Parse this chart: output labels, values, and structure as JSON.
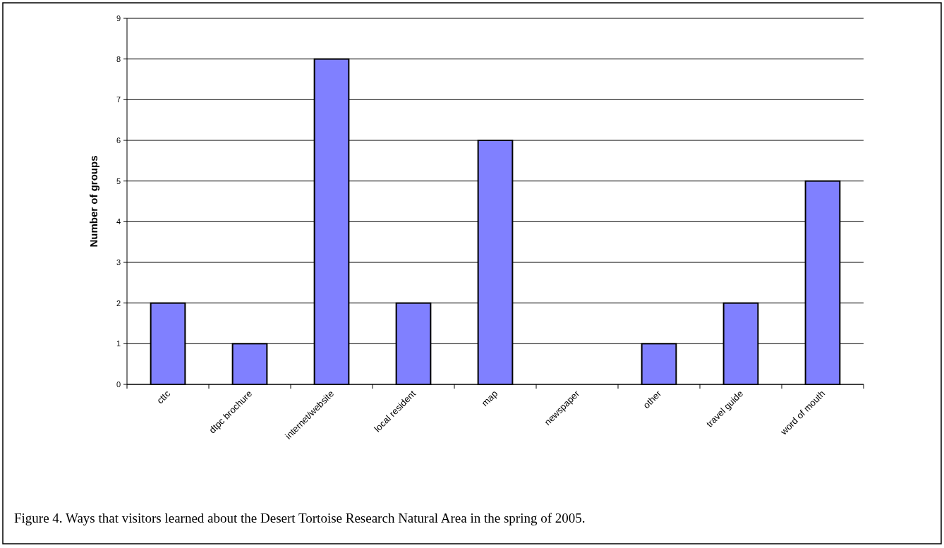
{
  "chart_data": {
    "type": "bar",
    "ylabel": "Number of groups",
    "categories": [
      "cttc",
      "dtpc brochure",
      "internet/website",
      "local resident",
      "map",
      "newspaper",
      "other",
      "travel guide",
      "word of mouth"
    ],
    "values": [
      2,
      1,
      8,
      2,
      6,
      0,
      1,
      2,
      5
    ],
    "color": "#8080ff",
    "ylim": [
      0,
      9
    ],
    "yticks": [
      0,
      1,
      2,
      3,
      4,
      5,
      6,
      7,
      8,
      9
    ],
    "grid": "y",
    "annotations": [
      "Figure 4. Ways that visitors learned about the Desert Tortoise Research Natural Area in the spring of 2005."
    ]
  }
}
